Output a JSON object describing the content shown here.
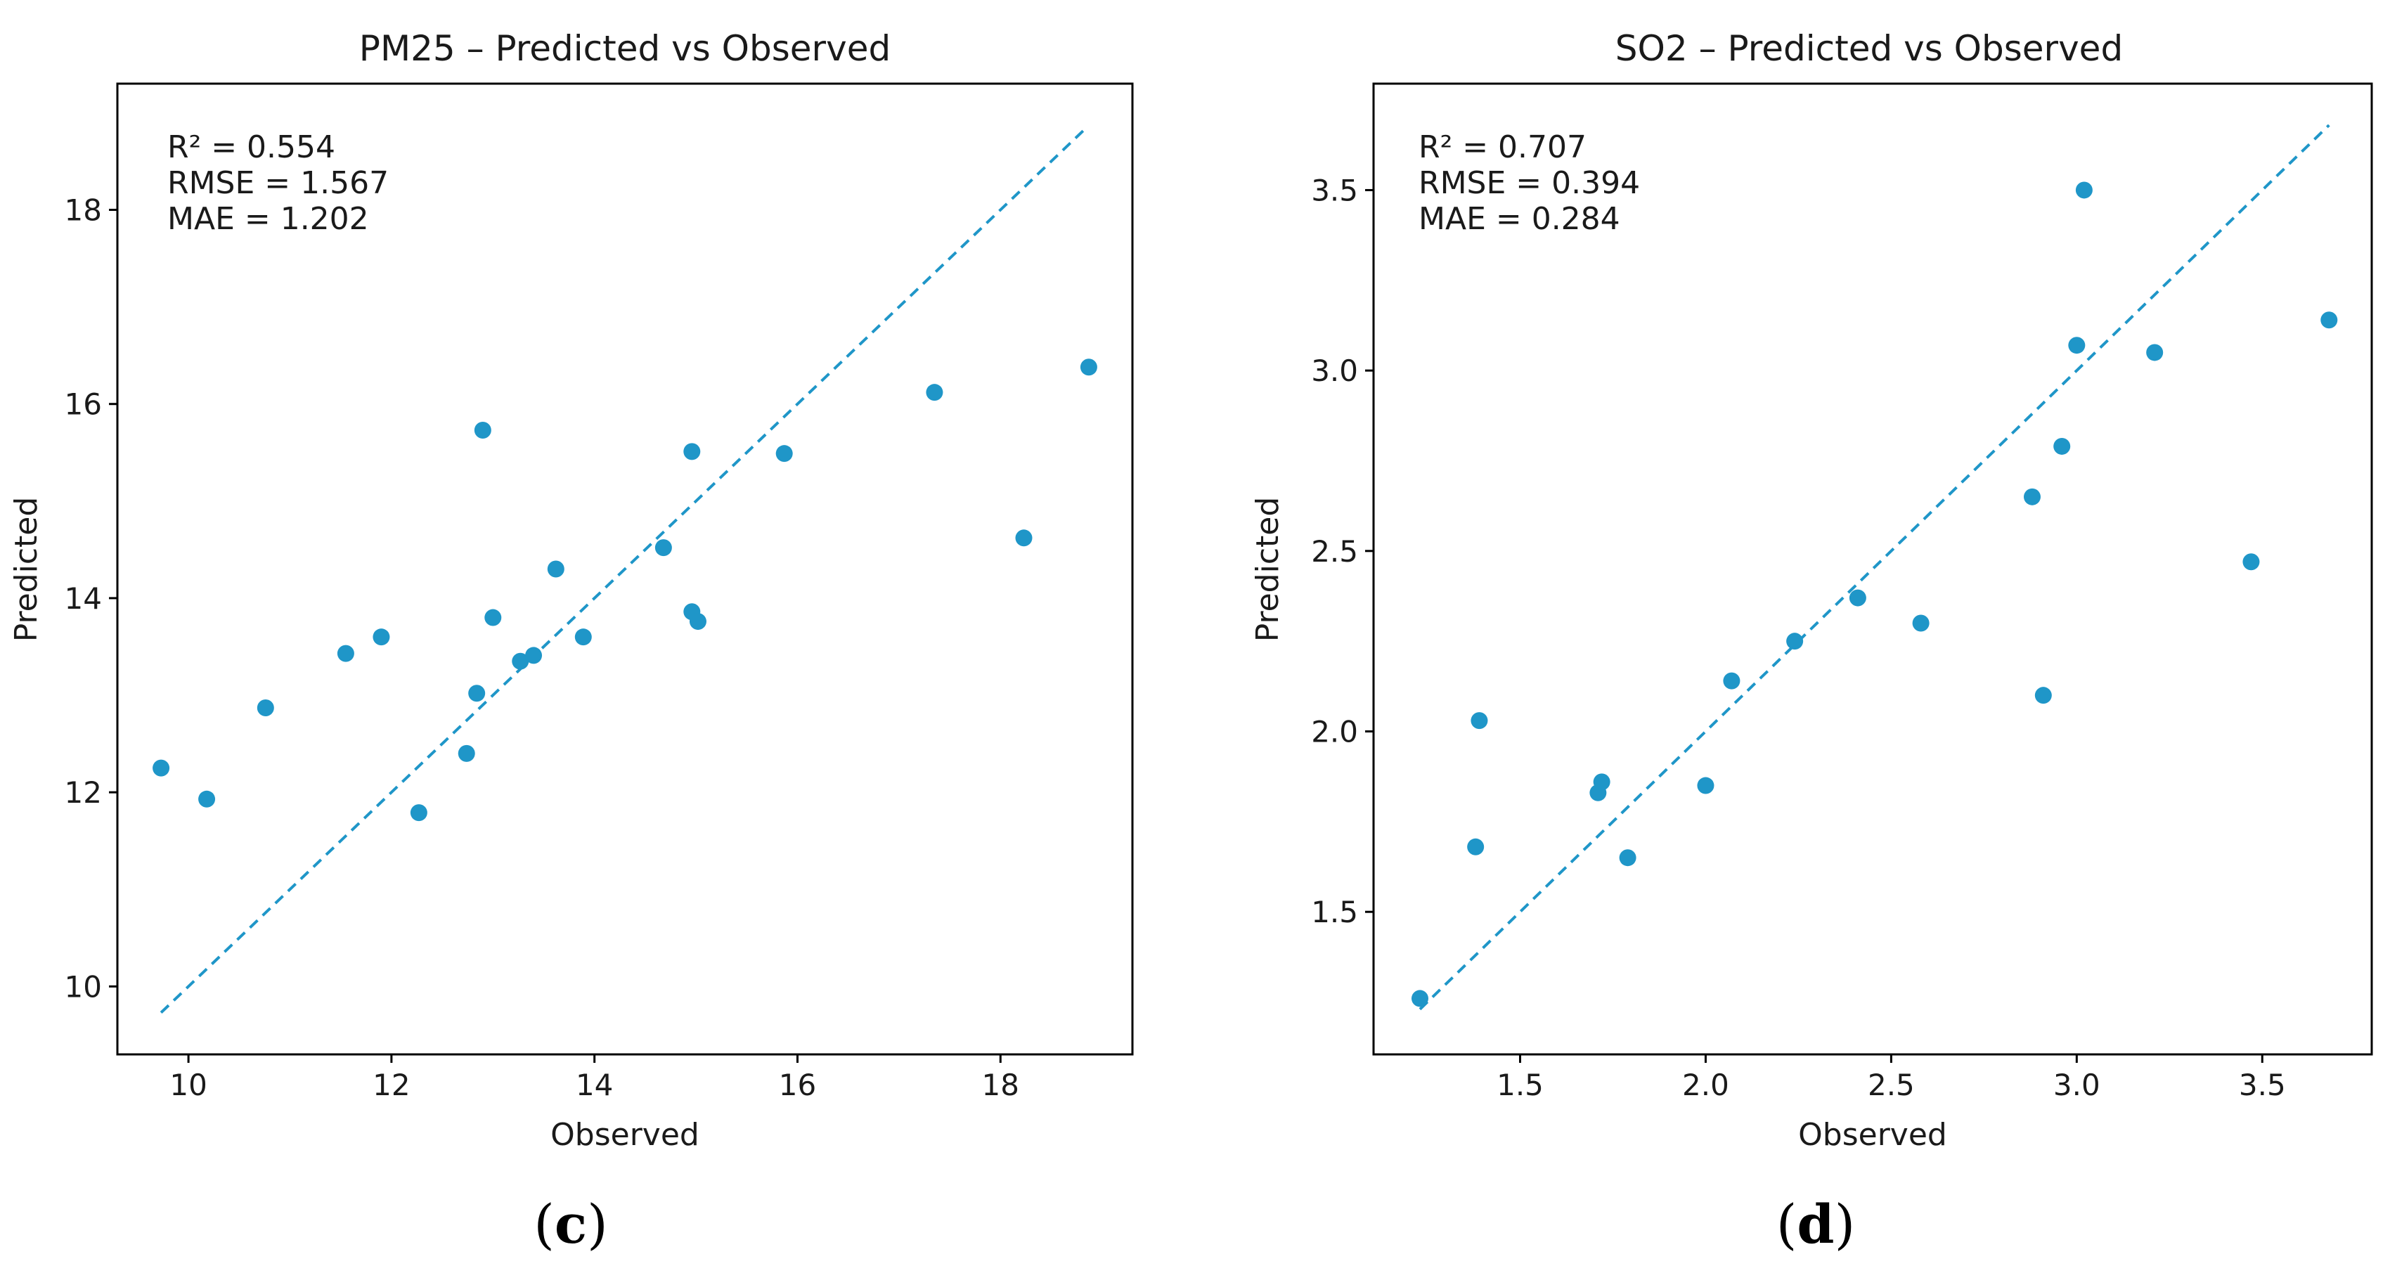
{
  "colors": {
    "point": "#1f96c8",
    "identity_line": "#1f96c8",
    "axes": "#000000",
    "text": "#1a1a1a"
  },
  "chart_data": [
    {
      "type": "scatter",
      "title": "PM25 – Predicted vs Observed",
      "xlabel": "Observed",
      "ylabel": "Predicted",
      "panel_label": "c",
      "xlim": [
        9.3,
        19.3
      ],
      "ylim": [
        9.3,
        19.3
      ],
      "xticks": [
        10,
        12,
        14,
        16,
        18
      ],
      "yticks": [
        10,
        12,
        14,
        16,
        18
      ],
      "tick_decimals": 0,
      "grid": false,
      "identity_line": [
        9.73,
        18.85
      ],
      "stats": [
        "R² = 0.554",
        "RMSE = 1.567",
        "MAE = 1.202"
      ],
      "points": [
        {
          "x": 9.73,
          "y": 12.25
        },
        {
          "x": 10.18,
          "y": 11.93
        },
        {
          "x": 10.76,
          "y": 12.87
        },
        {
          "x": 11.55,
          "y": 13.43
        },
        {
          "x": 11.9,
          "y": 13.6
        },
        {
          "x": 12.27,
          "y": 11.79
        },
        {
          "x": 12.74,
          "y": 12.4
        },
        {
          "x": 12.84,
          "y": 13.02
        },
        {
          "x": 12.9,
          "y": 15.73
        },
        {
          "x": 13.0,
          "y": 13.8
        },
        {
          "x": 13.27,
          "y": 13.35
        },
        {
          "x": 13.4,
          "y": 13.41
        },
        {
          "x": 13.62,
          "y": 14.3
        },
        {
          "x": 13.89,
          "y": 13.6
        },
        {
          "x": 14.68,
          "y": 14.52
        },
        {
          "x": 14.96,
          "y": 15.51
        },
        {
          "x": 14.96,
          "y": 13.86
        },
        {
          "x": 15.02,
          "y": 13.76
        },
        {
          "x": 15.87,
          "y": 15.49
        },
        {
          "x": 17.35,
          "y": 16.12
        },
        {
          "x": 18.23,
          "y": 14.62
        },
        {
          "x": 18.87,
          "y": 16.38
        }
      ]
    },
    {
      "type": "scatter",
      "title": "SO2 – Predicted vs Observed",
      "xlabel": "Observed",
      "ylabel": "Predicted",
      "panel_label": "d",
      "xlim": [
        1.105,
        3.795
      ],
      "ylim": [
        1.105,
        3.795
      ],
      "xticks": [
        1.5,
        2.0,
        2.5,
        3.0,
        3.5
      ],
      "yticks": [
        1.5,
        2.0,
        2.5,
        3.0,
        3.5
      ],
      "tick_decimals": 1,
      "grid": false,
      "identity_line": [
        1.23,
        3.68
      ],
      "stats": [
        "R² = 0.707",
        "RMSE = 0.394",
        "MAE = 0.284"
      ],
      "points": [
        {
          "x": 1.23,
          "y": 1.26
        },
        {
          "x": 1.38,
          "y": 1.68
        },
        {
          "x": 1.39,
          "y": 2.03
        },
        {
          "x": 1.71,
          "y": 1.83
        },
        {
          "x": 1.72,
          "y": 1.86
        },
        {
          "x": 1.79,
          "y": 1.65
        },
        {
          "x": 2.0,
          "y": 1.85
        },
        {
          "x": 2.07,
          "y": 2.14
        },
        {
          "x": 2.24,
          "y": 2.25
        },
        {
          "x": 2.41,
          "y": 2.37
        },
        {
          "x": 2.58,
          "y": 2.3
        },
        {
          "x": 2.88,
          "y": 2.65
        },
        {
          "x": 2.91,
          "y": 2.1
        },
        {
          "x": 2.96,
          "y": 2.79
        },
        {
          "x": 3.0,
          "y": 3.07
        },
        {
          "x": 3.02,
          "y": 3.5
        },
        {
          "x": 3.21,
          "y": 3.05
        },
        {
          "x": 3.47,
          "y": 2.47
        },
        {
          "x": 3.68,
          "y": 3.14
        }
      ]
    }
  ]
}
